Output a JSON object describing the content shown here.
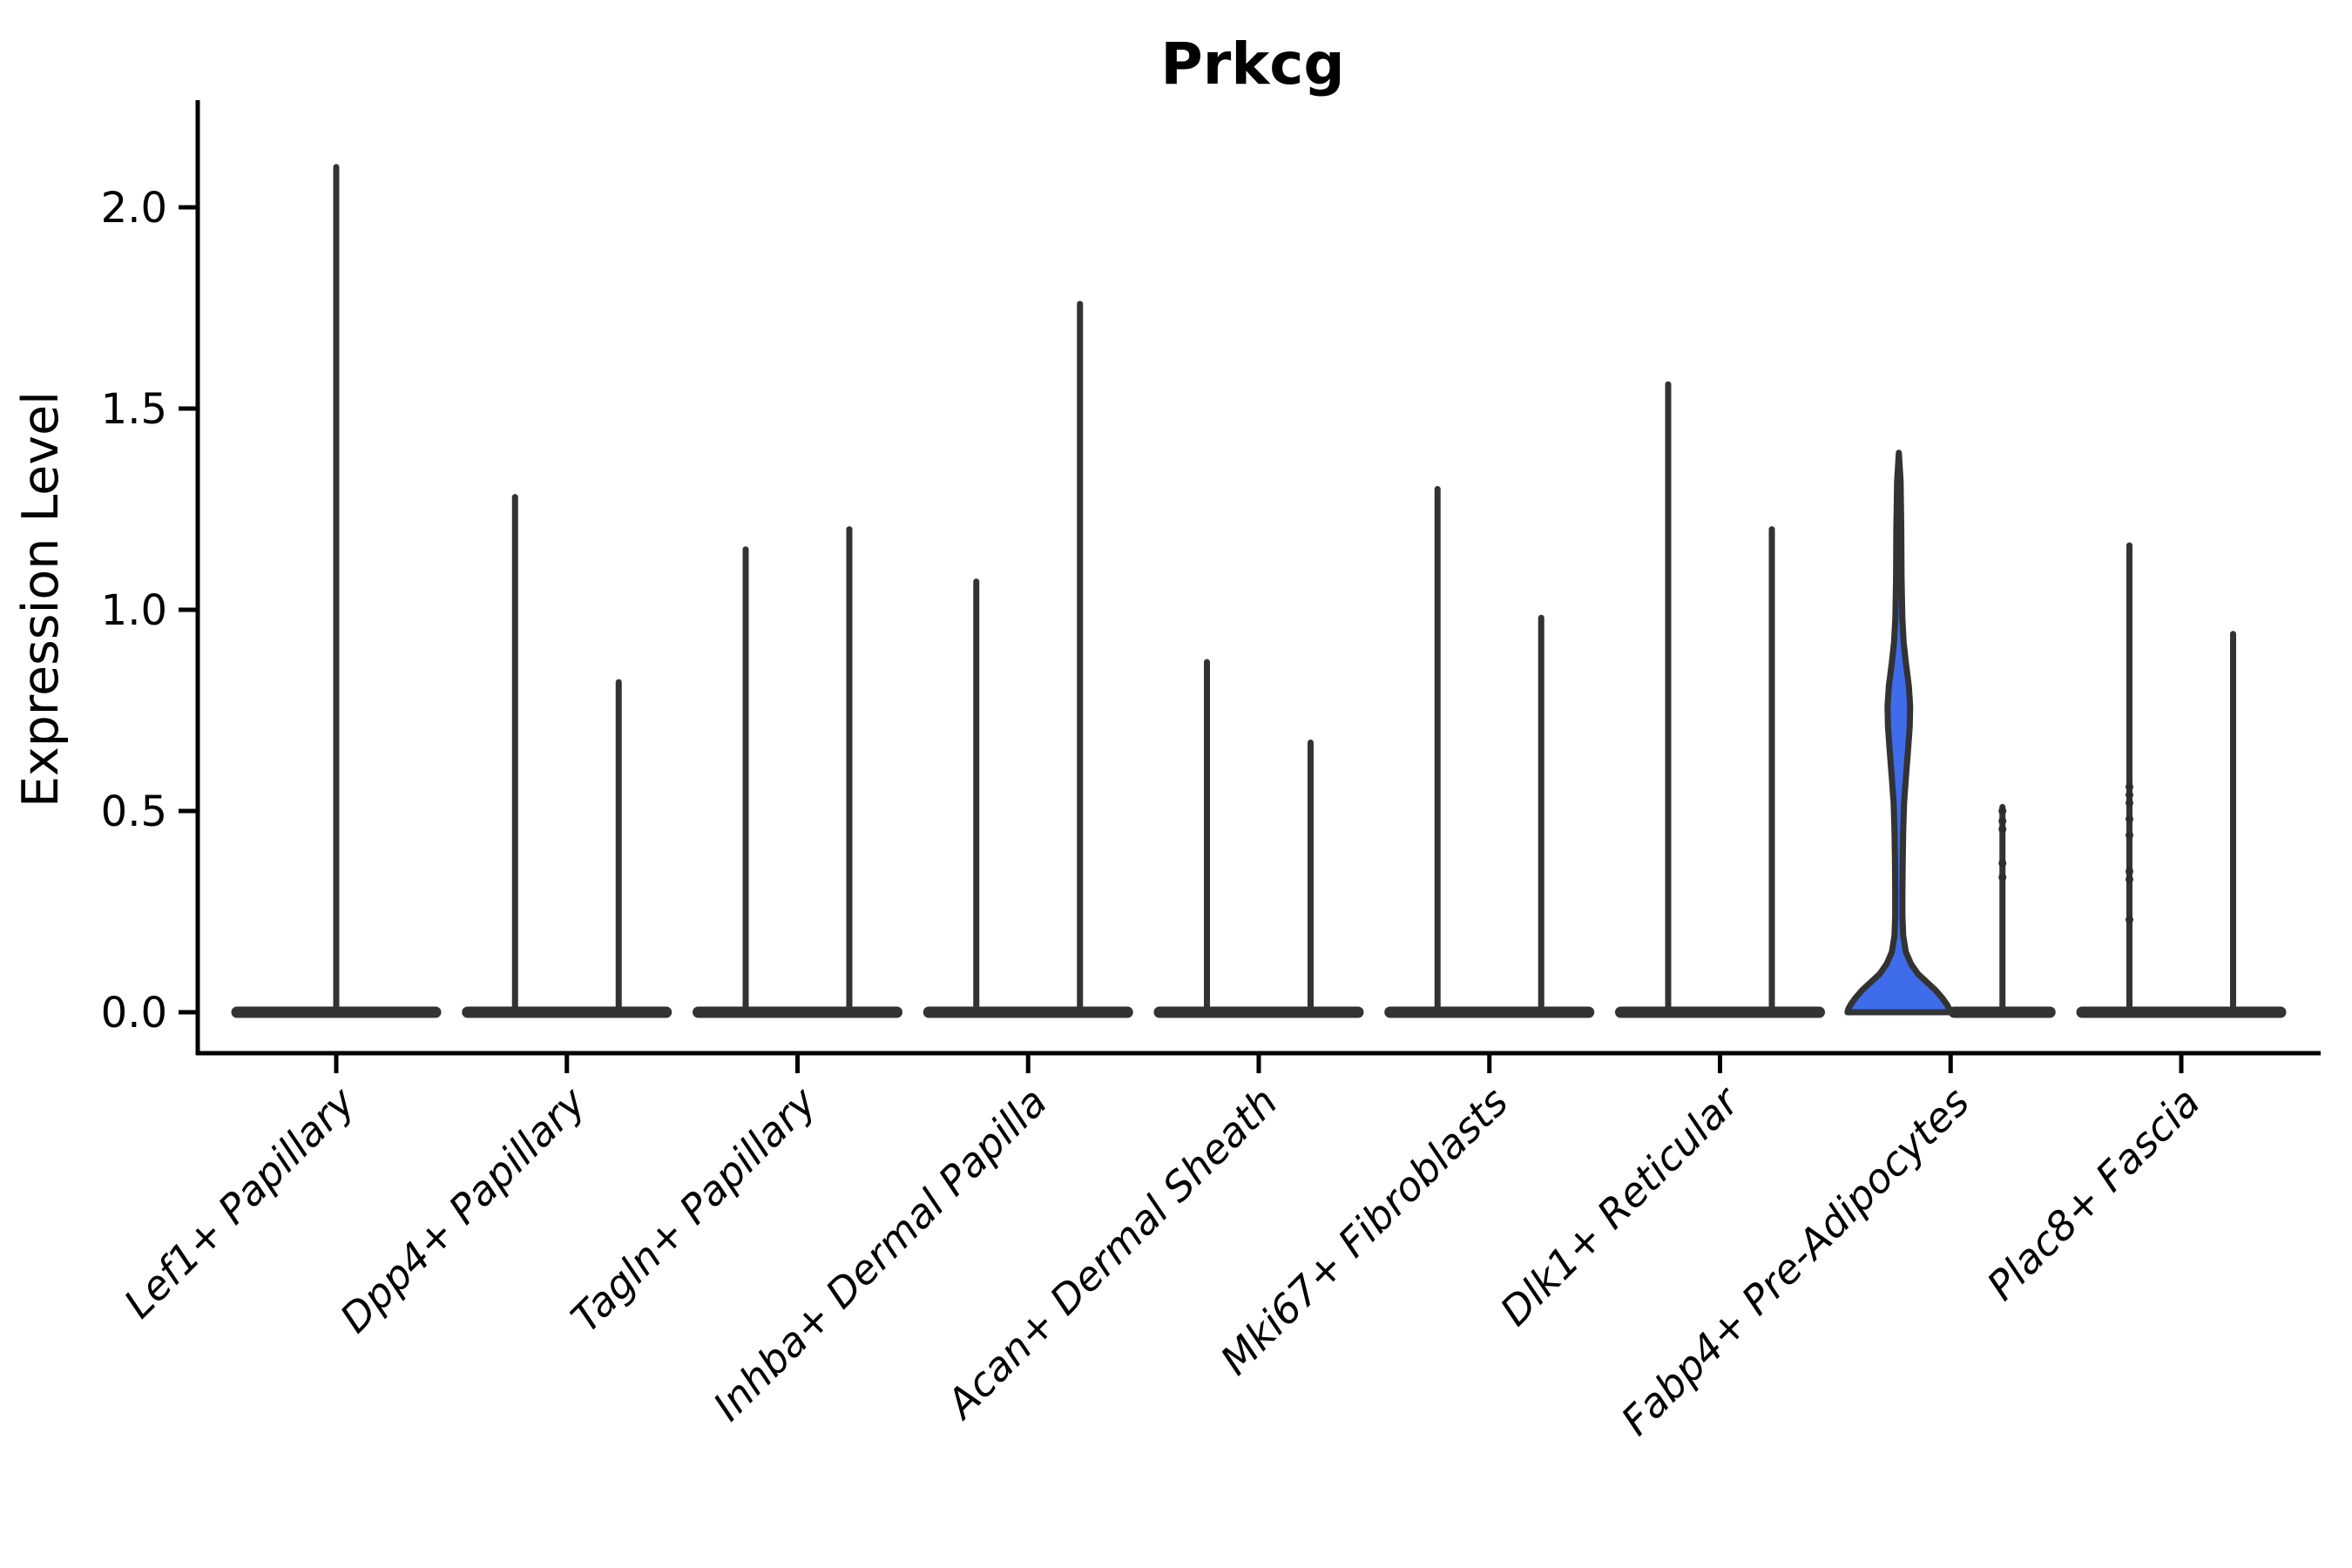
{
  "chart_data": {
    "type": "violin",
    "title": "Prkcg",
    "xlabel": "",
    "ylabel": "Expression Level",
    "ytick_labels": [
      "0.0",
      "0.5",
      "1.0",
      "1.5",
      "2.0"
    ],
    "ytick_values": [
      0.0,
      0.5,
      1.0,
      1.5,
      2.0
    ],
    "ylim": [
      -0.1,
      2.21
    ],
    "grid": "off",
    "legend": "none",
    "outline_color": "#333333",
    "accent_color": "#3E6CEA",
    "categories": [
      "Lef1+ Papillary",
      "Dpp4+ Papillary",
      "Tagln+ Papillary",
      "Inhba+ Dermal Papilla",
      "Acan+ Dermal Sheath",
      "Mki67+ Fibroblasts",
      "Dlk1+ Reticular",
      "Fabp4+ Pre-Adipocytes",
      "Plac8+ Fascia"
    ],
    "groups": [
      {
        "label": "Lef1+ Papillary",
        "violins": [
          {
            "peak": 2.1,
            "width": "full",
            "fill": "none"
          }
        ]
      },
      {
        "label": "Dpp4+ Papillary",
        "violins": [
          {
            "peak": 1.28,
            "fill": "none"
          },
          {
            "peak": 0.82,
            "fill": "none"
          }
        ]
      },
      {
        "label": "Tagln+ Papillary",
        "violins": [
          {
            "peak": 1.15,
            "fill": "none"
          },
          {
            "peak": 1.2,
            "fill": "none"
          }
        ]
      },
      {
        "label": "Inhba+ Dermal Papilla",
        "violins": [
          {
            "peak": 1.07,
            "fill": "none"
          },
          {
            "peak": 1.76,
            "fill": "none"
          }
        ]
      },
      {
        "label": "Acan+ Dermal Sheath",
        "violins": [
          {
            "peak": 0.87,
            "fill": "none"
          },
          {
            "peak": 0.67,
            "fill": "none"
          }
        ]
      },
      {
        "label": "Mki67+ Fibroblasts",
        "violins": [
          {
            "peak": 1.3,
            "fill": "none"
          },
          {
            "peak": 0.98,
            "fill": "none"
          }
        ]
      },
      {
        "label": "Dlk1+ Reticular",
        "violins": [
          {
            "peak": 1.56,
            "fill": "none"
          },
          {
            "peak": 1.2,
            "fill": "none"
          }
        ]
      },
      {
        "label": "Fabp4+ Pre-Adipocytes",
        "violins": [
          {
            "peak": 1.39,
            "fill": "#3E6CEA",
            "profile": [
              [
                1.39,
                0
              ],
              [
                1.32,
                2
              ],
              [
                1.2,
                2.8
              ],
              [
                1.08,
                3.2
              ],
              [
                0.98,
                4
              ],
              [
                0.92,
                5.5
              ],
              [
                0.87,
                8
              ],
              [
                0.81,
                11.5
              ],
              [
                0.76,
                13
              ],
              [
                0.71,
                12.5
              ],
              [
                0.65,
                10.5
              ],
              [
                0.58,
                8
              ],
              [
                0.52,
                6
              ],
              [
                0.45,
                5
              ],
              [
                0.38,
                4.5
              ],
              [
                0.3,
                4.2
              ],
              [
                0.24,
                4.2
              ],
              [
                0.19,
                5
              ],
              [
                0.15,
                8
              ],
              [
                0.12,
                14
              ],
              [
                0.095,
                22
              ],
              [
                0.075,
                32
              ],
              [
                0.055,
                42
              ],
              [
                0.035,
                50
              ],
              [
                0.02,
                55
              ],
              [
                0.008,
                58
              ],
              [
                0,
                59
              ]
            ]
          },
          {
            "peak": 0.51,
            "fill": "none",
            "dots": [
              0.5,
              0.475,
              0.455,
              0.37,
              0.335
            ]
          }
        ]
      },
      {
        "label": "Plac8+ Fascia",
        "violins": [
          {
            "peak": 1.16,
            "fill": "none",
            "dots": [
              0.56,
              0.54,
              0.52,
              0.48,
              0.44,
              0.35,
              0.33,
              0.23
            ]
          },
          {
            "peak": 0.94,
            "fill": "none"
          }
        ]
      }
    ]
  }
}
